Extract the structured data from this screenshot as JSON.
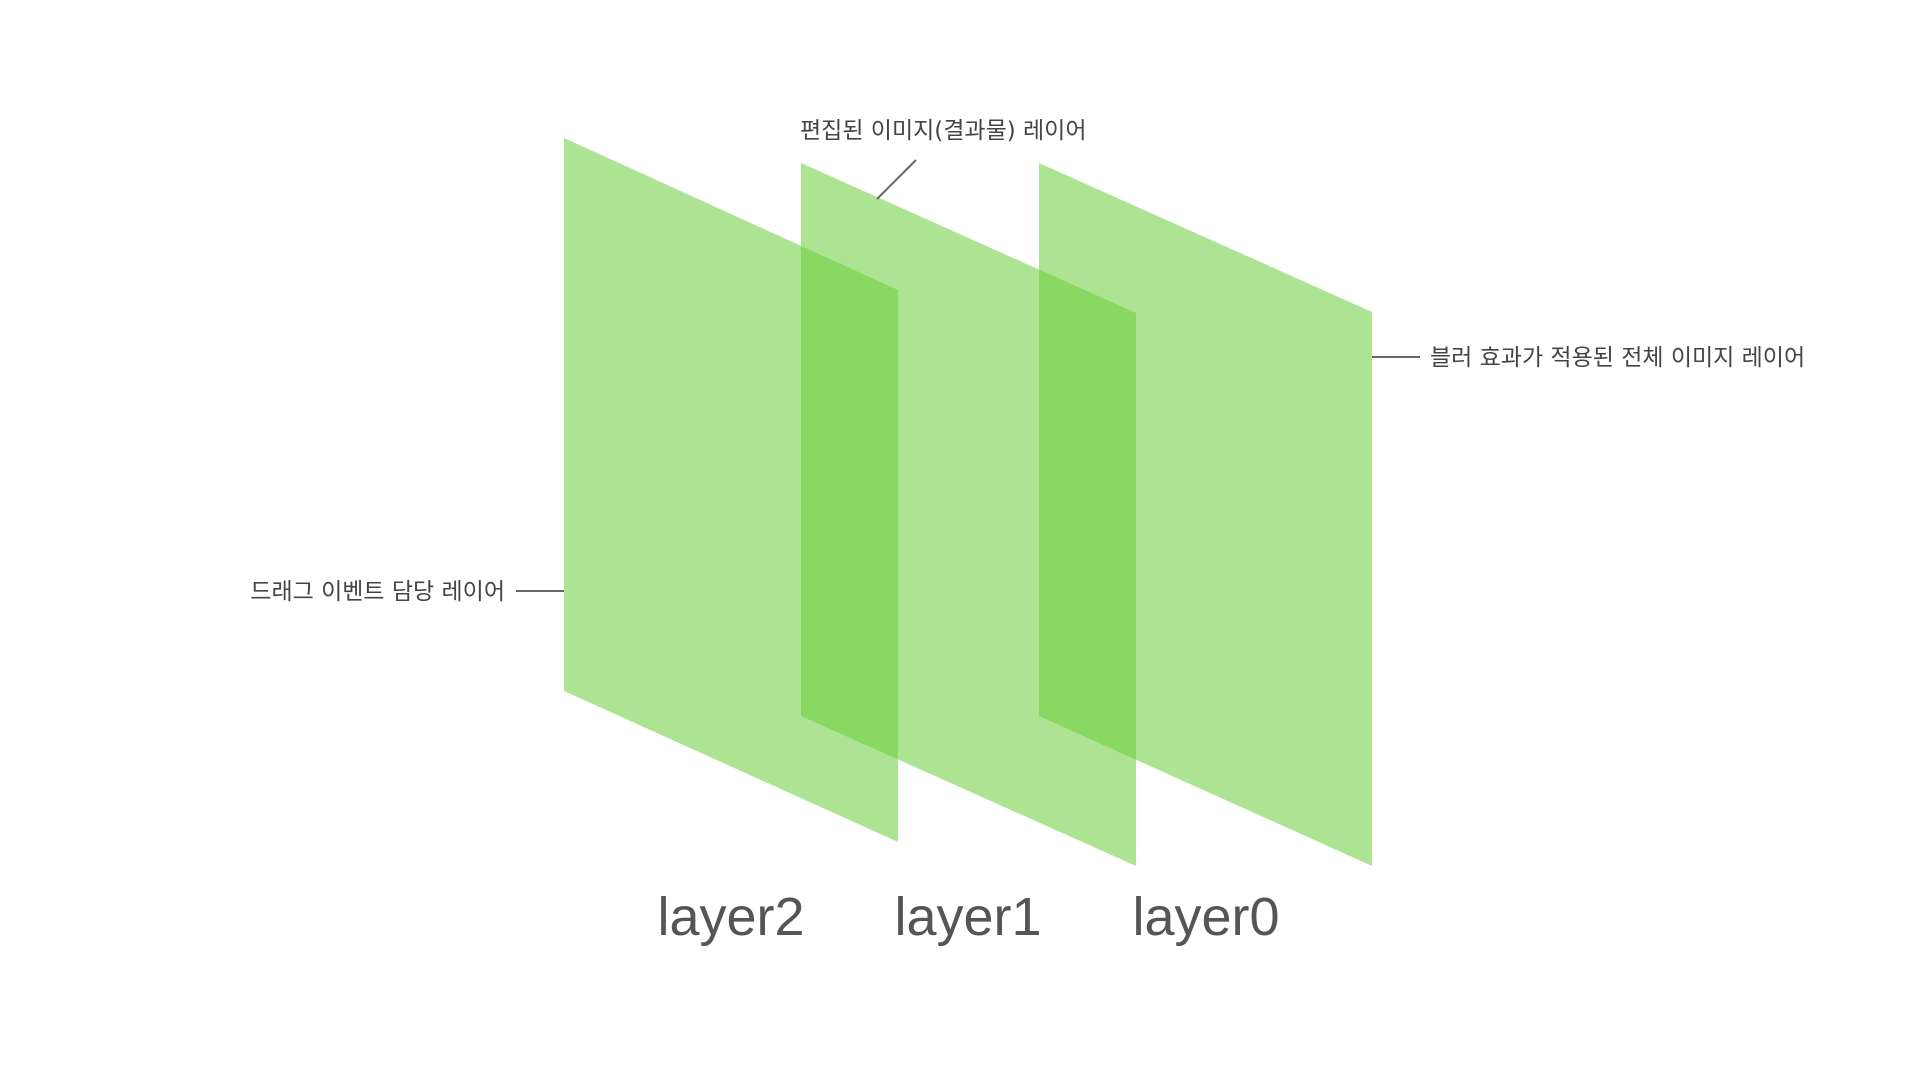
{
  "colors": {
    "plane": "#6acd3a",
    "annotation_text": "#444444",
    "layer_label_text": "#555555",
    "leader_line": "#666666",
    "background": "#ffffff"
  },
  "layers": [
    {
      "label": "layer2"
    },
    {
      "label": "layer1"
    },
    {
      "label": "layer0"
    }
  ],
  "annotations": {
    "top": "편집된 이미지(결과물) 레이어",
    "right": "블러 효과가 적용된 전체 이미지 레이어",
    "left": "드래그 이벤트 담당 레이어"
  }
}
